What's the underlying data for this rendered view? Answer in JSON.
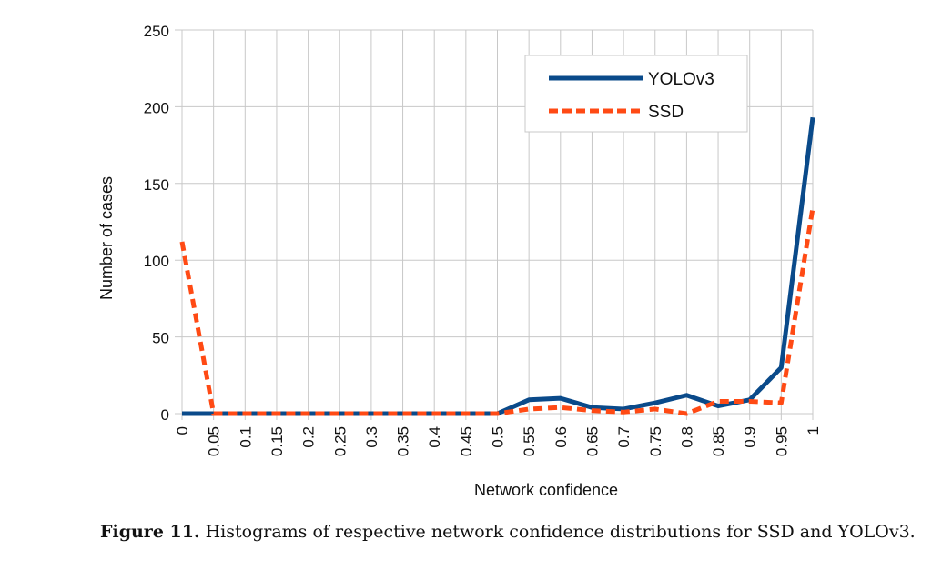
{
  "chart_data": {
    "type": "line",
    "title": "",
    "xlabel": "Network confidence",
    "ylabel": "Number of cases",
    "x": [
      0,
      0.05,
      0.1,
      0.15,
      0.2,
      0.25,
      0.3,
      0.35,
      0.4,
      0.45,
      0.5,
      0.55,
      0.6,
      0.65,
      0.7,
      0.75,
      0.8,
      0.85,
      0.9,
      0.95,
      1
    ],
    "x_tick_labels": [
      "0",
      "0.05",
      "0.1",
      "0.15",
      "0.2",
      "0.25",
      "0.3",
      "0.35",
      "0.4",
      "0.45",
      "0.5",
      "0.55",
      "0.6",
      "0.65",
      "0.7",
      "0.75",
      "0.8",
      "0.85",
      "0.9",
      "0.95",
      "1"
    ],
    "ylim": [
      0,
      250
    ],
    "y_ticks": [
      0,
      50,
      100,
      150,
      200,
      250
    ],
    "grid": true,
    "legend_position": "top-right",
    "series": [
      {
        "name": "YOLOv3",
        "color": "#0a4a8a",
        "style": "solid",
        "values": [
          0,
          0,
          0,
          0,
          0,
          0,
          0,
          0,
          0,
          0,
          0,
          9,
          10,
          4,
          3,
          7,
          12,
          5,
          9,
          30,
          193
        ]
      },
      {
        "name": "SSD",
        "color": "#ff4a14",
        "style": "dashed",
        "values": [
          112,
          0,
          0,
          0,
          0,
          0,
          0,
          0,
          0,
          0,
          0,
          3,
          4,
          2,
          1,
          3,
          0,
          8,
          8,
          7,
          134
        ]
      }
    ]
  },
  "caption": {
    "label": "Figure 11.",
    "text": " Histograms of respective network confidence distributions for SSD and YOLOv3."
  }
}
